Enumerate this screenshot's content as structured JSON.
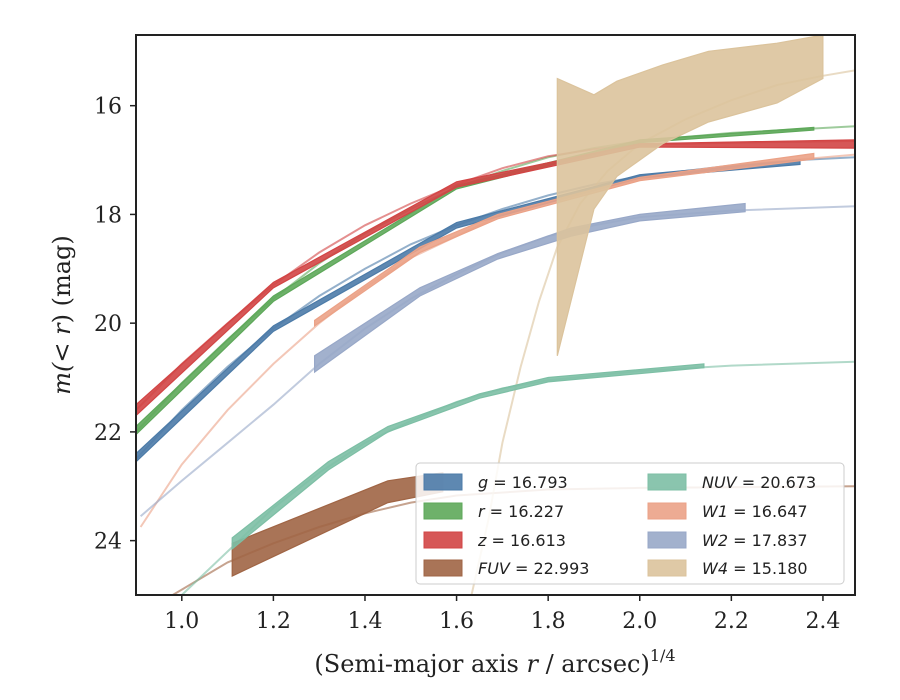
{
  "chart_data": {
    "type": "line",
    "xlabel_prefix": "(Semi-major axis ",
    "xlabel_var": "r",
    "xlabel_mid": " / arcsec)",
    "xlabel_exp": "1/4",
    "ylabel_prefix": "m(< ",
    "ylabel_var": "r",
    "ylabel_suffix": ") (mag)",
    "xlim": [
      0.9,
      2.47
    ],
    "ylim": [
      14.7,
      25.0
    ],
    "y_inverted": true,
    "xticks": [
      1.0,
      1.2,
      1.4,
      1.6,
      1.8,
      2.0,
      2.2,
      2.4
    ],
    "xtick_labels": [
      "1.0",
      "1.2",
      "1.4",
      "1.6",
      "1.8",
      "2.0",
      "2.2",
      "2.4"
    ],
    "yticks": [
      16,
      18,
      20,
      22,
      24
    ],
    "ytick_labels": [
      "16",
      "18",
      "20",
      "22",
      "24"
    ],
    "grid": false,
    "legend_position": "lower-right",
    "series": [
      {
        "name": "g = 16.793",
        "legend_var": "g",
        "legend_value": "= 16.793",
        "color": "#4c7ba8",
        "model": [
          [
            0.9,
            22.5
          ],
          [
            1.0,
            21.6
          ],
          [
            1.1,
            20.8
          ],
          [
            1.2,
            20.1
          ],
          [
            1.3,
            19.5
          ],
          [
            1.4,
            19.0
          ],
          [
            1.5,
            18.55
          ],
          [
            1.6,
            18.2
          ],
          [
            1.7,
            17.9
          ],
          [
            1.8,
            17.65
          ],
          [
            1.9,
            17.45
          ],
          [
            2.0,
            17.3
          ],
          [
            2.2,
            17.1
          ],
          [
            2.35,
            17.0
          ],
          [
            2.47,
            16.95
          ]
        ],
        "band": [
          [
            0.9,
            22.4,
            22.55
          ],
          [
            1.2,
            20.05,
            20.15
          ],
          [
            1.6,
            18.15,
            18.25
          ],
          [
            2.0,
            17.27,
            17.33
          ],
          [
            2.35,
            17.0,
            17.08
          ]
        ]
      },
      {
        "name": "r = 16.227",
        "legend_var": "r",
        "legend_value": "= 16.227",
        "color": "#5ea85a",
        "model": [
          [
            0.9,
            22.0
          ],
          [
            1.0,
            21.1
          ],
          [
            1.1,
            20.3
          ],
          [
            1.2,
            19.55
          ],
          [
            1.3,
            18.9
          ],
          [
            1.4,
            18.35
          ],
          [
            1.5,
            17.9
          ],
          [
            1.6,
            17.5
          ],
          [
            1.7,
            17.2
          ],
          [
            1.8,
            16.95
          ],
          [
            1.9,
            16.78
          ],
          [
            2.0,
            16.65
          ],
          [
            2.2,
            16.5
          ],
          [
            2.38,
            16.42
          ],
          [
            2.47,
            16.38
          ]
        ],
        "band": [
          [
            0.9,
            21.9,
            22.05
          ],
          [
            1.2,
            19.5,
            19.6
          ],
          [
            1.6,
            17.47,
            17.53
          ],
          [
            2.0,
            16.63,
            16.68
          ],
          [
            2.38,
            16.4,
            16.45
          ]
        ]
      },
      {
        "name": "z = 16.613",
        "legend_var": "z",
        "legend_value": "= 16.613",
        "color": "#d24545",
        "model": [
          [
            0.9,
            21.6
          ],
          [
            1.0,
            20.75
          ],
          [
            1.1,
            20.0
          ],
          [
            1.2,
            19.3
          ],
          [
            1.3,
            18.7
          ],
          [
            1.4,
            18.2
          ],
          [
            1.5,
            17.8
          ],
          [
            1.6,
            17.45
          ],
          [
            1.7,
            17.15
          ],
          [
            1.8,
            16.93
          ],
          [
            1.9,
            16.8
          ],
          [
            2.0,
            16.72
          ],
          [
            2.2,
            16.68
          ],
          [
            2.47,
            16.65
          ]
        ],
        "band": [
          [
            0.9,
            21.5,
            21.7
          ],
          [
            1.2,
            19.25,
            19.35
          ],
          [
            1.6,
            17.4,
            17.5
          ],
          [
            2.0,
            16.7,
            16.76
          ],
          [
            2.47,
            16.63,
            16.78
          ]
        ]
      },
      {
        "name": "FUV = 22.993",
        "legend_var": "FUV",
        "legend_value": "= 22.993",
        "color": "#a06545",
        "model": [
          [
            0.9,
            25.4
          ],
          [
            1.0,
            24.9
          ],
          [
            1.1,
            24.4
          ],
          [
            1.2,
            24.05
          ],
          [
            1.3,
            23.75
          ],
          [
            1.4,
            23.5
          ],
          [
            1.5,
            23.3
          ],
          [
            1.6,
            23.17
          ],
          [
            1.8,
            23.06
          ],
          [
            2.0,
            23.03
          ],
          [
            2.47,
            23.0
          ]
        ],
        "band": [
          [
            1.11,
            24.05,
            24.65
          ],
          [
            1.45,
            22.9,
            23.3
          ],
          [
            1.57,
            22.75,
            23.1
          ]
        ]
      },
      {
        "name": "NUV = 20.673",
        "legend_var": "NUV",
        "legend_value": "= 20.673",
        "color": "#7dbfa5",
        "model": [
          [
            0.9,
            25.8
          ],
          [
            1.0,
            25.0
          ],
          [
            1.1,
            24.2
          ],
          [
            1.2,
            23.4
          ],
          [
            1.3,
            22.75
          ],
          [
            1.4,
            22.2
          ],
          [
            1.5,
            21.8
          ],
          [
            1.6,
            21.45
          ],
          [
            1.7,
            21.2
          ],
          [
            1.8,
            21.05
          ],
          [
            2.0,
            20.88
          ],
          [
            2.2,
            20.78
          ],
          [
            2.47,
            20.71
          ]
        ],
        "band": [
          [
            1.11,
            23.95,
            24.15
          ],
          [
            1.32,
            22.55,
            22.7
          ],
          [
            1.45,
            21.9,
            22.0
          ],
          [
            1.65,
            21.3,
            21.38
          ],
          [
            1.8,
            21.0,
            21.08
          ],
          [
            2.14,
            20.75,
            20.82
          ]
        ]
      },
      {
        "name": "W1 = 16.647",
        "legend_var": "W1",
        "legend_value": "= 16.647",
        "color": "#eba287",
        "model": [
          [
            0.91,
            23.75
          ],
          [
            1.0,
            22.6
          ],
          [
            1.1,
            21.6
          ],
          [
            1.2,
            20.75
          ],
          [
            1.3,
            20.0
          ],
          [
            1.4,
            19.35
          ],
          [
            1.5,
            18.8
          ],
          [
            1.6,
            18.4
          ],
          [
            1.7,
            18.0
          ],
          [
            1.8,
            17.75
          ],
          [
            2.0,
            17.35
          ],
          [
            2.2,
            17.1
          ],
          [
            2.47,
            16.9
          ]
        ],
        "band": [
          [
            1.29,
            19.95,
            20.05
          ],
          [
            1.52,
            18.6,
            18.7
          ],
          [
            1.69,
            18.0,
            18.08
          ],
          [
            2.0,
            17.32,
            17.38
          ],
          [
            2.38,
            16.88,
            16.98
          ]
        ]
      },
      {
        "name": "W2 = 17.837",
        "legend_var": "W2",
        "legend_value": "= 17.837",
        "color": "#98a8c8",
        "model": [
          [
            0.91,
            23.55
          ],
          [
            1.0,
            22.9
          ],
          [
            1.1,
            22.2
          ],
          [
            1.2,
            21.5
          ],
          [
            1.3,
            20.75
          ],
          [
            1.4,
            20.1
          ],
          [
            1.5,
            19.55
          ],
          [
            1.6,
            19.1
          ],
          [
            1.7,
            18.7
          ],
          [
            1.8,
            18.4
          ],
          [
            1.9,
            18.2
          ],
          [
            2.0,
            18.05
          ],
          [
            2.2,
            17.93
          ],
          [
            2.47,
            17.85
          ]
        ],
        "band": [
          [
            1.29,
            20.6,
            20.9
          ],
          [
            1.52,
            19.35,
            19.5
          ],
          [
            1.69,
            18.72,
            18.82
          ],
          [
            1.85,
            18.25,
            18.4
          ],
          [
            2.0,
            18.0,
            18.12
          ],
          [
            2.23,
            17.8,
            17.95
          ]
        ]
      },
      {
        "name": "W4 = 15.180",
        "legend_var": "W4",
        "legend_value": "= 15.180",
        "color": "#dbc39c",
        "model": [
          [
            1.63,
            25.1
          ],
          [
            1.67,
            23.6
          ],
          [
            1.7,
            22.2
          ],
          [
            1.74,
            20.8
          ],
          [
            1.78,
            19.6
          ],
          [
            1.82,
            18.6
          ],
          [
            1.87,
            17.8
          ],
          [
            1.93,
            17.2
          ],
          [
            2.0,
            16.7
          ],
          [
            2.1,
            16.25
          ],
          [
            2.2,
            15.9
          ],
          [
            2.3,
            15.62
          ],
          [
            2.4,
            15.45
          ],
          [
            2.47,
            15.35
          ]
        ],
        "band": [
          [
            1.82,
            15.5,
            20.6
          ],
          [
            1.9,
            15.8,
            17.9
          ],
          [
            1.95,
            15.55,
            17.3
          ],
          [
            2.05,
            15.25,
            16.7
          ],
          [
            2.15,
            15.0,
            16.3
          ],
          [
            2.3,
            14.85,
            15.95
          ],
          [
            2.4,
            14.7,
            15.5
          ]
        ]
      }
    ]
  }
}
